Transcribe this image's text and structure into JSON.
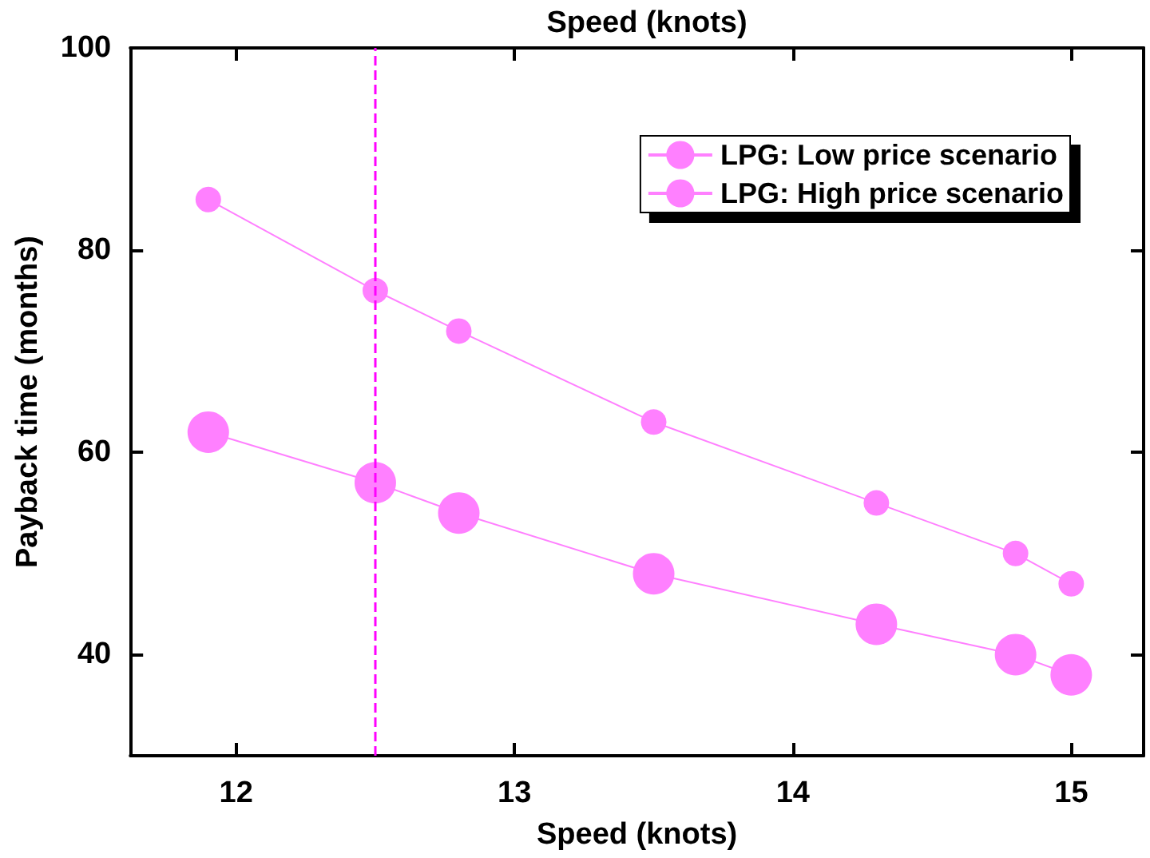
{
  "chart_data": {
    "type": "line",
    "title": "Speed (knots)",
    "xlabel": "Speed (knots)",
    "ylabel": "Payback time (months)",
    "x": [
      11.9,
      12.5,
      12.8,
      13.5,
      14.3,
      14.8,
      15
    ],
    "series": [
      {
        "name": "LPG: Low price scenario",
        "color": "#ff80ff",
        "values": [
          85,
          76,
          72,
          63,
          55,
          50,
          47
        ]
      },
      {
        "name": "LPG: High price scenario",
        "color": "#ff80ff",
        "values": [
          62,
          57,
          54,
          48,
          43,
          40,
          38
        ]
      }
    ],
    "xlim": [
      11.62,
      15.26
    ],
    "xticks": [
      12,
      13,
      14,
      15
    ],
    "ylim": [
      30,
      100
    ],
    "yticks": [
      40,
      60,
      80,
      100
    ],
    "ref_lines": [
      {
        "axis": "x",
        "value": 12.5,
        "color": "#ff00ff",
        "line_style": "dashed"
      }
    ],
    "grid": false,
    "legend": "top right",
    "marker": "circle",
    "line_style": "solid"
  }
}
